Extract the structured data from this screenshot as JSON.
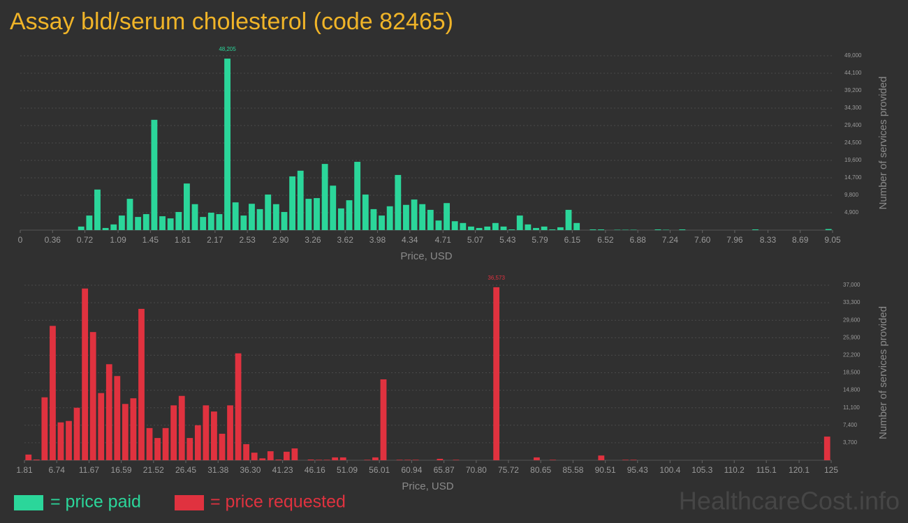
{
  "title": "Assay bld/serum cholesterol (code 82465)",
  "watermark": "HealthcareCost.info",
  "chart_data": [
    {
      "type": "histogram",
      "xlabel": "Price, USD",
      "ylabel": "Number of services provided",
      "xlim": [
        0,
        9.05
      ],
      "ylim": [
        0,
        49000
      ],
      "grid": true,
      "xticks": [
        0,
        0.36,
        0.72,
        1.09,
        1.45,
        1.81,
        2.17,
        2.53,
        {
          "value": 2.9,
          "label": "2.90"
        },
        3.26,
        3.62,
        3.98,
        4.34,
        4.71,
        5.07,
        5.43,
        5.79,
        6.15,
        6.52,
        6.88,
        7.24,
        {
          "value": 7.6,
          "label": "7.60"
        },
        7.96,
        8.33,
        8.69,
        9.05
      ],
      "yticks": [
        {
          "value": 4900,
          "label": "4,900"
        },
        {
          "value": 9800,
          "label": "9,800"
        },
        {
          "value": 14700,
          "label": "14,700"
        },
        {
          "value": 19600,
          "label": "19,600"
        },
        {
          "value": 24500,
          "label": "24,500"
        },
        {
          "value": 29400,
          "label": "29,400"
        },
        {
          "value": 34300,
          "label": "34,300"
        },
        {
          "value": 39200,
          "label": "39,200"
        },
        {
          "value": 44100,
          "label": "44,100"
        },
        {
          "value": 49000,
          "label": "49,000"
        }
      ],
      "bins": [
        0,
        0.0905,
        0.181,
        0.2715,
        0.362,
        0.4525,
        0.543,
        0.6335,
        0.724,
        0.8145,
        0.905,
        0.9955,
        1.086,
        1.1765,
        1.267,
        1.3575,
        1.448,
        1.5385,
        1.629,
        1.7195,
        1.81,
        1.9005,
        1.991,
        2.0815,
        2.172,
        2.2625,
        2.353,
        2.4435,
        2.534,
        2.6245,
        2.715,
        2.8055,
        2.896,
        2.9865,
        3.077,
        3.1675,
        3.258,
        3.3485,
        3.439,
        3.5295,
        3.62,
        3.7105,
        3.801,
        3.8915,
        3.982,
        4.0725,
        4.163,
        4.2535,
        4.344,
        4.4345,
        4.525,
        4.6155,
        4.706,
        4.7965,
        4.887,
        4.9775,
        5.068,
        5.1585,
        5.249,
        5.3395,
        5.43,
        5.5205,
        5.611,
        5.7015,
        5.792,
        5.8825,
        5.973,
        6.0635,
        6.154,
        6.2445,
        6.335,
        6.4255,
        6.516,
        6.6065,
        6.697,
        6.7875,
        6.878,
        6.9685,
        7.059,
        7.1495,
        7.24,
        7.3305,
        7.421,
        7.5115,
        7.602,
        7.6925,
        7.783,
        7.8735,
        7.964,
        8.0545,
        8.145,
        8.2355,
        8.326,
        8.4165,
        8.507,
        8.5975,
        8.688,
        8.7785,
        8.869,
        8.9595,
        9.05
      ],
      "series": [
        {
          "name": "= price paid",
          "color": "#2bd69a",
          "values": [
            0,
            0,
            0,
            0,
            0,
            0,
            0,
            1000,
            4100,
            11400,
            600,
            1600,
            4100,
            8800,
            3700,
            4500,
            31000,
            3900,
            3300,
            5100,
            13100,
            7300,
            3700,
            4900,
            4500,
            48205,
            7800,
            4100,
            7400,
            5900,
            10000,
            7300,
            5100,
            15100,
            16700,
            8800,
            9000,
            18600,
            12500,
            6100,
            8400,
            19200,
            10000,
            5900,
            4100,
            6700,
            15500,
            7100,
            8600,
            7300,
            5700,
            2700,
            7600,
            2500,
            2000,
            1000,
            600,
            1000,
            2000,
            1000,
            200,
            4100,
            1600,
            600,
            1000,
            200,
            800,
            5700,
            2000,
            0,
            200,
            200,
            0,
            100,
            100,
            100,
            0,
            0,
            200,
            100,
            0,
            200,
            0,
            0,
            0,
            0,
            0,
            0,
            0,
            0,
            200,
            0,
            0,
            0,
            0,
            0,
            0,
            0,
            0,
            300
          ],
          "value_labels": [
            null,
            null,
            null,
            null,
            null,
            null,
            null,
            null,
            null,
            null,
            null,
            null,
            null,
            null,
            null,
            null,
            null,
            null,
            null,
            null,
            null,
            null,
            null,
            null,
            null,
            "48,205",
            null,
            null,
            null,
            null,
            null,
            null,
            null,
            null,
            null,
            null,
            null,
            null,
            null,
            null,
            null,
            null,
            null,
            null,
            null,
            null,
            null,
            null,
            null,
            null,
            null,
            null,
            null,
            null,
            null,
            null,
            null,
            null,
            null,
            null,
            null,
            null,
            null,
            null,
            null,
            null,
            null,
            null,
            null,
            null,
            null,
            null,
            null,
            null,
            null,
            null,
            null,
            null,
            null,
            null,
            null,
            null,
            null,
            null,
            null,
            null,
            null,
            null,
            null,
            null,
            null,
            null,
            null,
            null,
            null,
            null,
            null,
            null,
            null,
            null
          ]
        }
      ]
    },
    {
      "type": "histogram",
      "xlabel": "Price, USD",
      "ylabel": "Number of services provided",
      "xlim": [
        1.81,
        125
      ],
      "ylim": [
        0,
        37000
      ],
      "grid": true,
      "xticks": [
        1.81,
        6.74,
        11.67,
        16.59,
        21.52,
        26.45,
        31.38,
        {
          "value": 36.3,
          "label": "36.30"
        },
        41.23,
        46.16,
        51.09,
        56.01,
        60.94,
        65.87,
        {
          "value": 70.8,
          "label": "70.80"
        },
        75.72,
        80.65,
        85.58,
        90.51,
        95.43,
        100.4,
        105.3,
        110.2,
        115.1,
        120.1,
        125
      ],
      "yticks": [
        {
          "value": 3700,
          "label": "3,700"
        },
        {
          "value": 7400,
          "label": "7,400"
        },
        {
          "value": 11100,
          "label": "11,100"
        },
        {
          "value": 14800,
          "label": "14,800"
        },
        {
          "value": 18500,
          "label": "18,500"
        },
        {
          "value": 22200,
          "label": "22,200"
        },
        {
          "value": 25900,
          "label": "25,900"
        },
        {
          "value": 29600,
          "label": "29,600"
        },
        {
          "value": 33300,
          "label": "33,300"
        },
        {
          "value": 37000,
          "label": "37,000"
        }
      ],
      "bins": [
        1.81,
        3.04,
        4.27,
        5.51,
        6.74,
        7.97,
        9.2,
        10.43,
        11.67,
        12.9,
        14.13,
        15.36,
        16.59,
        17.82,
        19.06,
        20.29,
        21.52,
        22.75,
        23.98,
        25.22,
        26.45,
        27.68,
        28.91,
        30.14,
        31.38,
        32.61,
        33.84,
        35.07,
        36.3,
        37.54,
        38.77,
        40,
        41.23,
        42.46,
        43.69,
        44.93,
        46.16,
        47.39,
        48.62,
        49.85,
        51.09,
        52.32,
        53.55,
        54.78,
        56.01,
        57.25,
        58.48,
        59.71,
        60.94,
        62.17,
        63.4,
        64.64,
        65.87,
        67.1,
        68.33,
        69.56,
        70.8,
        72.03,
        73.26,
        74.49,
        75.72,
        76.96,
        78.19,
        79.42,
        80.65,
        81.88,
        83.11,
        84.35,
        85.58,
        86.81,
        88.04,
        89.27,
        90.51,
        91.74,
        92.97,
        94.2,
        95.43,
        96.67,
        97.9,
        99.13,
        100.36,
        101.59,
        102.82,
        104.06,
        105.29,
        106.52,
        107.75,
        108.98,
        110.21,
        111.45,
        112.68,
        113.91,
        115.14,
        116.37,
        117.61,
        118.84,
        120.07,
        121.3,
        122.53,
        123.77,
        125
      ],
      "series": [
        {
          "name": "= price requested",
          "color": "#e0323f",
          "values": [
            1200,
            150,
            13300,
            28400,
            8000,
            8300,
            11100,
            36300,
            27100,
            14200,
            20300,
            17800,
            11900,
            13100,
            32000,
            6800,
            4700,
            6800,
            11600,
            13600,
            4700,
            7400,
            11600,
            10300,
            5600,
            11600,
            22600,
            3400,
            1600,
            400,
            1900,
            150,
            1800,
            2500,
            0,
            150,
            100,
            100,
            600,
            600,
            0,
            0,
            100,
            600,
            17100,
            0,
            100,
            100,
            100,
            0,
            0,
            300,
            0,
            100,
            0,
            0,
            0,
            0,
            36573,
            0,
            0,
            0,
            0,
            600,
            0,
            100,
            0,
            0,
            0,
            0,
            0,
            1000,
            0,
            0,
            100,
            100,
            0,
            0,
            0,
            0,
            0,
            0,
            0,
            0,
            0,
            0,
            0,
            0,
            0,
            0,
            0,
            0,
            0,
            0,
            0,
            0,
            0,
            0,
            0,
            5000
          ],
          "value_labels": [
            null,
            null,
            null,
            null,
            null,
            null,
            null,
            null,
            null,
            null,
            null,
            null,
            null,
            null,
            null,
            null,
            null,
            null,
            null,
            null,
            null,
            null,
            null,
            null,
            null,
            null,
            null,
            null,
            null,
            null,
            null,
            null,
            null,
            null,
            null,
            null,
            null,
            null,
            null,
            null,
            null,
            null,
            null,
            null,
            null,
            null,
            null,
            null,
            null,
            null,
            null,
            null,
            null,
            null,
            null,
            null,
            null,
            null,
            "36,573",
            null,
            null,
            null,
            null,
            null,
            null,
            null,
            null,
            null,
            null,
            null,
            null,
            null,
            null,
            null,
            null,
            null,
            null,
            null,
            null,
            null,
            null,
            null,
            null,
            null,
            null,
            null,
            null,
            null,
            null,
            null,
            null,
            null,
            null,
            null,
            null,
            null,
            null,
            null,
            null,
            null
          ]
        }
      ]
    }
  ]
}
